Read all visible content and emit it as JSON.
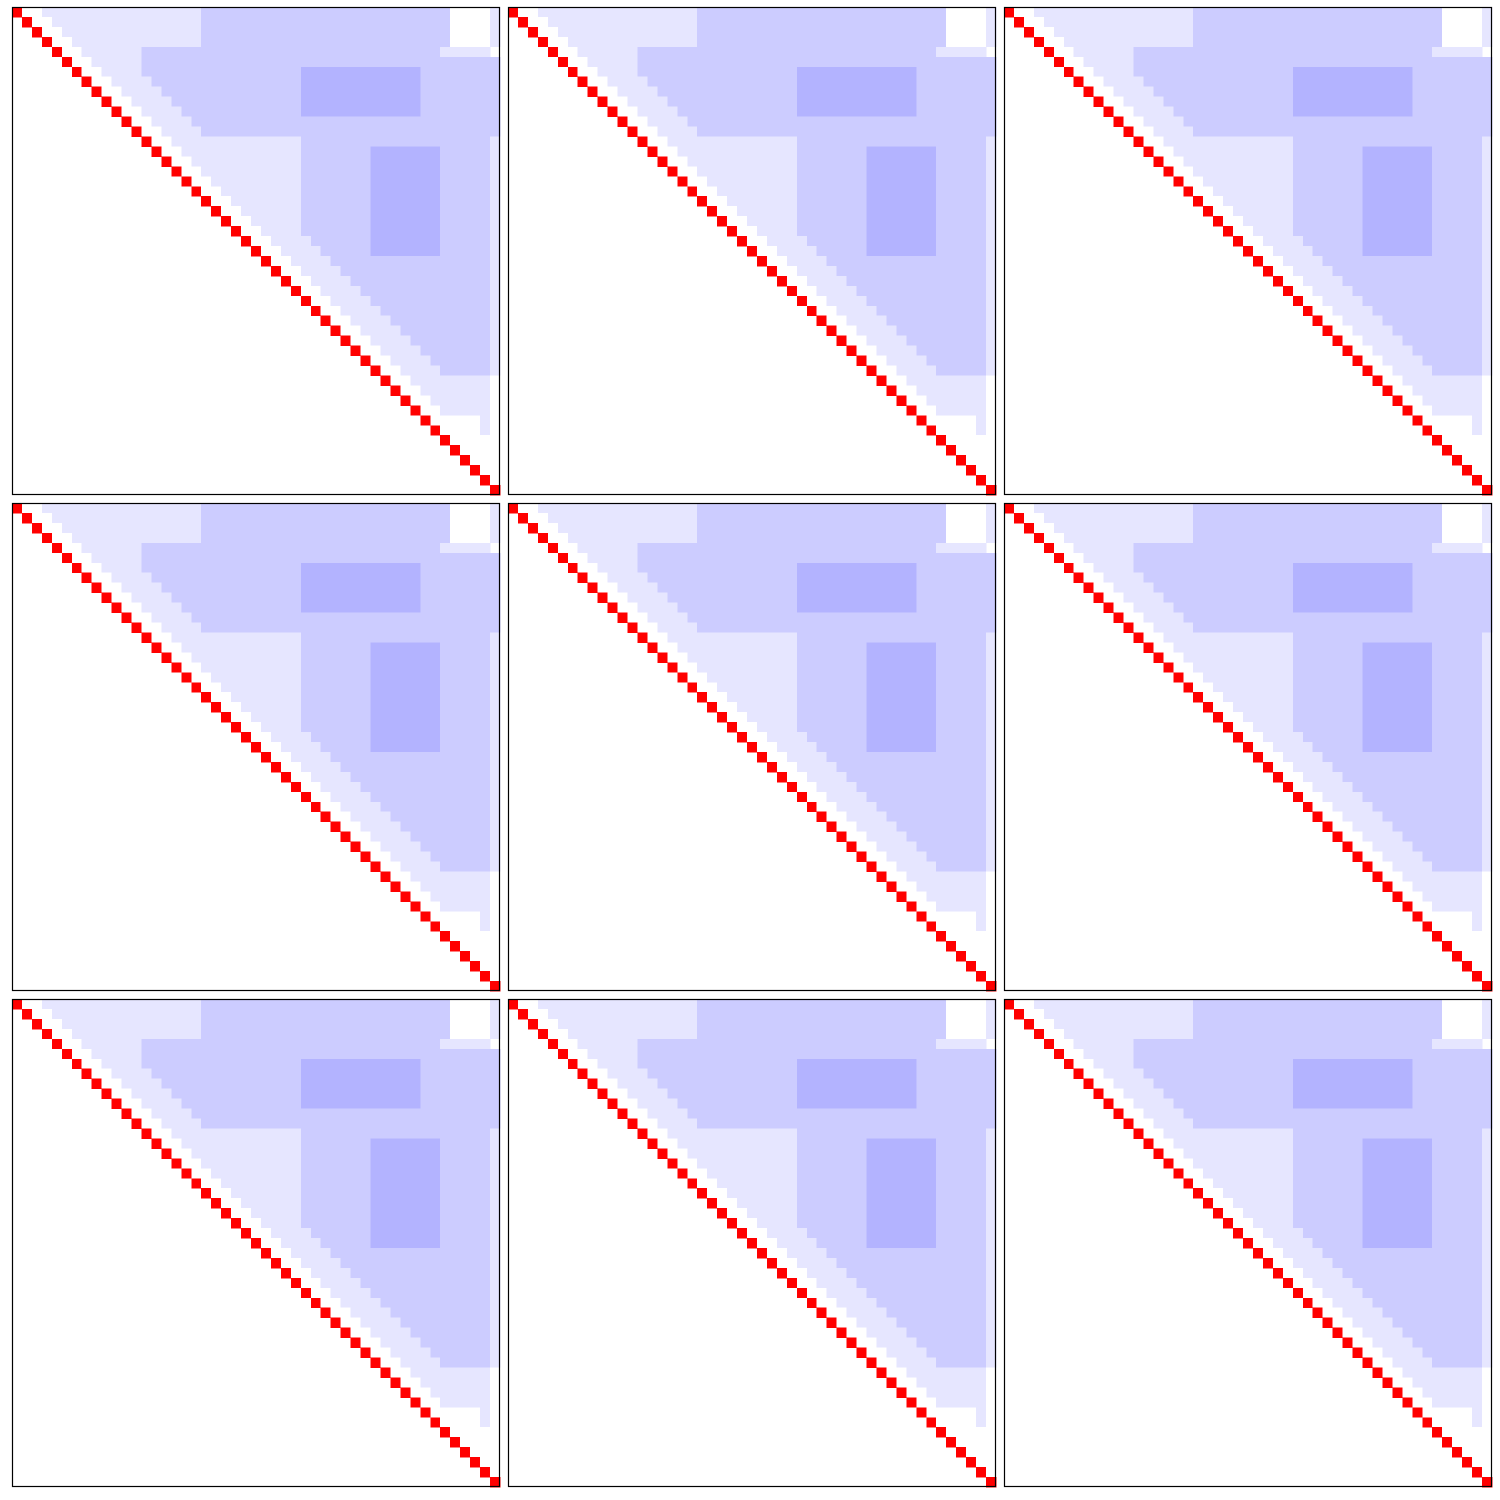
{
  "chart_data": {
    "type": "heatmap",
    "triangle": "upper",
    "vlim": [
      -1,
      1
    ],
    "colormap": [
      "#0000ff",
      "#ffffff",
      "#ff0000"
    ],
    "rows": [
      [
        1,
        0,
        0,
        -0.1,
        -0.1,
        -0.1,
        -0.1,
        -0.1,
        -0.1,
        -0.1,
        -0.1,
        -0.1,
        -0.1,
        -0.1,
        -0.1,
        -0.1,
        -0.1,
        -0.1,
        -0.1,
        -0.2,
        -0.2,
        -0.2,
        -0.2,
        -0.2,
        -0.2,
        -0.2,
        -0.2,
        -0.2,
        -0.2,
        -0.2,
        -0.2,
        -0.2,
        -0.2,
        -0.2,
        -0.2,
        -0.2,
        -0.2,
        -0.2,
        -0.2,
        -0.2,
        -0.2,
        -0.2,
        -0.2,
        -0.2,
        0,
        0,
        0,
        0,
        -0.1
      ],
      [
        1,
        0,
        0,
        -0.1,
        -0.1,
        -0.1,
        -0.1,
        -0.1,
        -0.1,
        -0.1,
        -0.1,
        -0.1,
        -0.1,
        -0.1,
        -0.1,
        -0.1,
        -0.1,
        -0.1,
        -0.2,
        -0.2,
        -0.2,
        -0.2,
        -0.2,
        -0.2,
        -0.2,
        -0.2,
        -0.2,
        -0.2,
        -0.2,
        -0.2,
        -0.2,
        -0.2,
        -0.2,
        -0.2,
        -0.2,
        -0.2,
        -0.2,
        -0.2,
        -0.2,
        -0.2,
        -0.2,
        -0.2,
        -0.2,
        0,
        0,
        0,
        0,
        -0.1
      ],
      [
        1,
        0,
        0,
        -0.1,
        -0.1,
        -0.1,
        -0.1,
        -0.1,
        -0.1,
        -0.1,
        -0.1,
        -0.1,
        -0.1,
        -0.1,
        -0.1,
        -0.1,
        -0.1,
        -0.2,
        -0.2,
        -0.2,
        -0.2,
        -0.2,
        -0.2,
        -0.2,
        -0.2,
        -0.2,
        -0.2,
        -0.2,
        -0.2,
        -0.2,
        -0.2,
        -0.2,
        -0.2,
        -0.2,
        -0.2,
        -0.2,
        -0.2,
        -0.2,
        -0.2,
        -0.2,
        -0.2,
        -0.2,
        0,
        0,
        0,
        0,
        -0.1
      ],
      [
        1,
        0,
        0,
        -0.1,
        -0.1,
        -0.1,
        -0.1,
        -0.1,
        -0.1,
        -0.1,
        -0.1,
        -0.1,
        -0.1,
        -0.1,
        -0.1,
        -0.1,
        -0.2,
        -0.2,
        -0.2,
        -0.2,
        -0.2,
        -0.2,
        -0.2,
        -0.2,
        -0.2,
        -0.2,
        -0.2,
        -0.2,
        -0.2,
        -0.2,
        -0.2,
        -0.2,
        -0.2,
        -0.2,
        -0.2,
        -0.2,
        -0.2,
        -0.2,
        -0.2,
        -0.2,
        -0.2,
        0,
        0,
        0,
        0,
        -0.1
      ],
      [
        1,
        0,
        0,
        -0.1,
        -0.1,
        -0.1,
        -0.1,
        -0.1,
        -0.1,
        -0.2,
        -0.2,
        -0.2,
        -0.2,
        -0.2,
        -0.2,
        -0.2,
        -0.2,
        -0.2,
        -0.2,
        -0.2,
        -0.2,
        -0.2,
        -0.2,
        -0.2,
        -0.2,
        -0.2,
        -0.2,
        -0.2,
        -0.2,
        -0.2,
        -0.2,
        -0.2,
        -0.2,
        -0.2,
        -0.2,
        -0.2,
        -0.2,
        -0.2,
        -0.2,
        -0.1,
        -0.1,
        -0.1,
        -0.1,
        -0.1
      ],
      [
        1,
        0,
        0,
        -0.1,
        -0.1,
        -0.1,
        -0.1,
        -0.1,
        -0.2,
        -0.2,
        -0.2,
        -0.2,
        -0.2,
        -0.2,
        -0.2,
        -0.2,
        -0.2,
        -0.2,
        -0.2,
        -0.2,
        -0.2,
        -0.2,
        -0.2,
        -0.2,
        -0.2,
        -0.2,
        -0.2,
        -0.2,
        -0.2,
        -0.2,
        -0.2,
        -0.2,
        -0.2,
        -0.2,
        -0.2,
        -0.2,
        -0.2,
        -0.2,
        -0.2,
        -0.2,
        -0.2,
        -0.2,
        -0.2,
        -0.2
      ],
      [
        1,
        0,
        0,
        -0.1,
        -0.1,
        -0.1,
        -0.1,
        -0.2,
        -0.2,
        -0.2,
        -0.2,
        -0.2,
        -0.2,
        -0.2,
        -0.2,
        -0.2,
        -0.2,
        -0.2,
        -0.2,
        -0.2,
        -0.2,
        -0.2,
        -0.2,
        -0.3,
        -0.3,
        -0.3,
        -0.3,
        -0.3,
        -0.3,
        -0.3,
        -0.3,
        -0.3,
        -0.3,
        -0.3,
        -0.3,
        -0.2,
        -0.2,
        -0.2,
        -0.2,
        -0.2,
        -0.2,
        -0.2,
        -0.2
      ],
      [
        1,
        0,
        0,
        -0.1,
        -0.1,
        -0.1,
        -0.1,
        -0.2,
        -0.2,
        -0.2,
        -0.2,
        -0.2,
        -0.2,
        -0.2,
        -0.2,
        -0.2,
        -0.2,
        -0.2,
        -0.2,
        -0.2,
        -0.2,
        -0.2,
        -0.3,
        -0.3,
        -0.3,
        -0.3,
        -0.3,
        -0.3,
        -0.3,
        -0.3,
        -0.3,
        -0.3,
        -0.3,
        -0.3,
        -0.2,
        -0.2,
        -0.2,
        -0.2,
        -0.2,
        -0.2,
        -0.2,
        -0.2
      ],
      [
        1,
        0,
        0,
        -0.1,
        -0.1,
        -0.1,
        -0.1,
        -0.2,
        -0.2,
        -0.2,
        -0.2,
        -0.2,
        -0.2,
        -0.2,
        -0.2,
        -0.2,
        -0.2,
        -0.2,
        -0.2,
        -0.2,
        -0.2,
        -0.3,
        -0.3,
        -0.3,
        -0.3,
        -0.3,
        -0.3,
        -0.3,
        -0.3,
        -0.3,
        -0.3,
        -0.3,
        -0.3,
        -0.2,
        -0.2,
        -0.2,
        -0.2,
        -0.2,
        -0.2,
        -0.2,
        -0.2
      ],
      [
        1,
        0,
        0,
        -0.1,
        -0.1,
        -0.1,
        -0.1,
        -0.2,
        -0.2,
        -0.2,
        -0.2,
        -0.2,
        -0.2,
        -0.2,
        -0.2,
        -0.2,
        -0.2,
        -0.2,
        -0.2,
        -0.2,
        -0.3,
        -0.3,
        -0.3,
        -0.3,
        -0.3,
        -0.3,
        -0.3,
        -0.3,
        -0.3,
        -0.3,
        -0.3,
        -0.3,
        -0.2,
        -0.2,
        -0.2,
        -0.2,
        -0.2,
        -0.2,
        -0.2,
        -0.2
      ],
      [
        1,
        0,
        0,
        -0.1,
        -0.1,
        -0.1,
        -0.1,
        -0.2,
        -0.2,
        -0.2,
        -0.2,
        -0.2,
        -0.2,
        -0.2,
        -0.2,
        -0.2,
        -0.2,
        -0.2,
        -0.2,
        -0.3,
        -0.3,
        -0.3,
        -0.3,
        -0.3,
        -0.3,
        -0.3,
        -0.3,
        -0.3,
        -0.3,
        -0.3,
        -0.3,
        -0.2,
        -0.2,
        -0.2,
        -0.2,
        -0.2,
        -0.2,
        -0.2,
        -0.2
      ],
      [
        1,
        0,
        0,
        -0.1,
        -0.1,
        -0.1,
        -0.1,
        -0.2,
        -0.2,
        -0.2,
        -0.2,
        -0.2,
        -0.2,
        -0.2,
        -0.2,
        -0.2,
        -0.2,
        -0.2,
        -0.2,
        -0.2,
        -0.2,
        -0.2,
        -0.2,
        -0.2,
        -0.2,
        -0.2,
        -0.2,
        -0.2,
        -0.2,
        -0.2,
        -0.2,
        -0.2,
        -0.2,
        -0.2,
        -0.2,
        -0.2,
        -0.2,
        -0.2
      ],
      [
        1,
        0,
        0,
        -0.1,
        -0.1,
        -0.1,
        -0.1,
        -0.2,
        -0.2,
        -0.2,
        -0.2,
        -0.2,
        -0.2,
        -0.2,
        -0.2,
        -0.2,
        -0.2,
        -0.2,
        -0.2,
        -0.2,
        -0.2,
        -0.2,
        -0.2,
        -0.2,
        -0.2,
        -0.2,
        -0.2,
        -0.2,
        -0.2,
        -0.2,
        -0.2,
        -0.2,
        -0.2,
        -0.2,
        -0.2,
        -0.2,
        -0.2
      ],
      [
        1,
        0,
        0,
        -0.1,
        -0.1,
        -0.1,
        -0.1,
        -0.1,
        -0.1,
        -0.1,
        -0.1,
        -0.1,
        -0.1,
        -0.1,
        -0.1,
        -0.1,
        -0.2,
        -0.2,
        -0.2,
        -0.2,
        -0.2,
        -0.2,
        -0.2,
        -0.2,
        -0.2,
        -0.2,
        -0.2,
        -0.2,
        -0.2,
        -0.2,
        -0.2,
        -0.2,
        -0.2,
        -0.2,
        -0.2,
        -0.1
      ],
      [
        1,
        0,
        0,
        -0.1,
        -0.1,
        -0.1,
        -0.1,
        -0.1,
        -0.1,
        -0.1,
        -0.1,
        -0.1,
        -0.1,
        -0.1,
        -0.1,
        -0.2,
        -0.2,
        -0.2,
        -0.2,
        -0.2,
        -0.2,
        -0.2,
        -0.3,
        -0.3,
        -0.3,
        -0.3,
        -0.3,
        -0.3,
        -0.3,
        -0.2,
        -0.2,
        -0.2,
        -0.2,
        -0.2,
        -0.1
      ],
      [
        1,
        0,
        0,
        -0.1,
        -0.1,
        -0.1,
        -0.1,
        -0.1,
        -0.1,
        -0.1,
        -0.1,
        -0.1,
        -0.1,
        -0.1,
        -0.2,
        -0.2,
        -0.2,
        -0.2,
        -0.2,
        -0.2,
        -0.2,
        -0.3,
        -0.3,
        -0.3,
        -0.3,
        -0.3,
        -0.3,
        -0.3,
        -0.2,
        -0.2,
        -0.2,
        -0.2,
        -0.2,
        -0.1
      ],
      [
        1,
        0,
        0,
        -0.1,
        -0.1,
        -0.1,
        -0.1,
        -0.1,
        -0.1,
        -0.1,
        -0.1,
        -0.1,
        -0.1,
        -0.2,
        -0.2,
        -0.2,
        -0.2,
        -0.2,
        -0.2,
        -0.2,
        -0.3,
        -0.3,
        -0.3,
        -0.3,
        -0.3,
        -0.3,
        -0.3,
        -0.2,
        -0.2,
        -0.2,
        -0.2,
        -0.2,
        -0.1
      ],
      [
        1,
        0,
        0,
        -0.1,
        -0.1,
        -0.1,
        -0.1,
        -0.1,
        -0.1,
        -0.1,
        -0.1,
        -0.1,
        -0.2,
        -0.2,
        -0.2,
        -0.2,
        -0.2,
        -0.2,
        -0.2,
        -0.3,
        -0.3,
        -0.3,
        -0.3,
        -0.3,
        -0.3,
        -0.3,
        -0.2,
        -0.2,
        -0.2,
        -0.2,
        -0.2,
        -0.1
      ],
      [
        1,
        0,
        0,
        -0.1,
        -0.1,
        -0.1,
        -0.1,
        -0.1,
        -0.1,
        -0.1,
        -0.1,
        -0.2,
        -0.2,
        -0.2,
        -0.2,
        -0.2,
        -0.2,
        -0.2,
        -0.3,
        -0.3,
        -0.3,
        -0.3,
        -0.3,
        -0.3,
        -0.3,
        -0.2,
        -0.2,
        -0.2,
        -0.2,
        -0.2,
        -0.1
      ],
      [
        1,
        0,
        0,
        -0.1,
        -0.1,
        -0.1,
        -0.1,
        -0.1,
        -0.1,
        -0.1,
        -0.2,
        -0.2,
        -0.2,
        -0.2,
        -0.2,
        -0.2,
        -0.2,
        -0.3,
        -0.3,
        -0.3,
        -0.3,
        -0.3,
        -0.3,
        -0.3,
        -0.2,
        -0.2,
        -0.2,
        -0.2,
        -0.2,
        -0.1
      ],
      [
        1,
        0,
        0,
        -0.1,
        -0.1,
        -0.1,
        -0.1,
        -0.1,
        -0.1,
        -0.2,
        -0.2,
        -0.2,
        -0.2,
        -0.2,
        -0.2,
        -0.2,
        -0.3,
        -0.3,
        -0.3,
        -0.3,
        -0.3,
        -0.3,
        -0.3,
        -0.2,
        -0.2,
        -0.2,
        -0.2,
        -0.2,
        -0.1
      ],
      [
        1,
        0,
        0,
        -0.1,
        -0.1,
        -0.1,
        -0.1,
        -0.1,
        -0.2,
        -0.2,
        -0.2,
        -0.2,
        -0.2,
        -0.2,
        -0.2,
        -0.3,
        -0.3,
        -0.3,
        -0.3,
        -0.3,
        -0.3,
        -0.3,
        -0.2,
        -0.2,
        -0.2,
        -0.2,
        -0.2,
        -0.1
      ],
      [
        1,
        0,
        0,
        -0.1,
        -0.1,
        -0.1,
        -0.1,
        -0.2,
        -0.2,
        -0.2,
        -0.2,
        -0.2,
        -0.2,
        -0.2,
        -0.3,
        -0.3,
        -0.3,
        -0.3,
        -0.3,
        -0.3,
        -0.3,
        -0.2,
        -0.2,
        -0.2,
        -0.2,
        -0.2,
        -0.1
      ],
      [
        1,
        0,
        0,
        -0.1,
        -0.1,
        -0.1,
        -0.1,
        -0.2,
        -0.2,
        -0.2,
        -0.2,
        -0.2,
        -0.2,
        -0.3,
        -0.3,
        -0.3,
        -0.3,
        -0.3,
        -0.3,
        -0.3,
        -0.2,
        -0.2,
        -0.2,
        -0.2,
        -0.2,
        -0.1
      ],
      [
        1,
        0,
        0,
        -0.1,
        -0.1,
        -0.1,
        -0.1,
        -0.2,
        -0.2,
        -0.2,
        -0.2,
        -0.2,
        -0.3,
        -0.3,
        -0.3,
        -0.3,
        -0.3,
        -0.3,
        -0.3,
        -0.2,
        -0.2,
        -0.2,
        -0.2,
        -0.2,
        -0.1
      ],
      [
        1,
        0,
        0,
        -0.1,
        -0.1,
        -0.1,
        -0.1,
        -0.2,
        -0.2,
        -0.2,
        -0.2,
        -0.2,
        -0.2,
        -0.2,
        -0.2,
        -0.2,
        -0.2,
        -0.2,
        -0.2,
        -0.2,
        -0.2,
        -0.2,
        -0.2,
        -0.1
      ],
      [
        1,
        0,
        0,
        -0.1,
        -0.1,
        -0.1,
        -0.1,
        -0.2,
        -0.2,
        -0.2,
        -0.2,
        -0.2,
        -0.2,
        -0.2,
        -0.2,
        -0.2,
        -0.2,
        -0.2,
        -0.2,
        -0.2,
        -0.2,
        -0.2,
        -0.1
      ],
      [
        1,
        0,
        0,
        -0.1,
        -0.1,
        -0.1,
        -0.1,
        -0.2,
        -0.2,
        -0.2,
        -0.2,
        -0.2,
        -0.2,
        -0.2,
        -0.2,
        -0.2,
        -0.2,
        -0.2,
        -0.2,
        -0.2,
        -0.2,
        -0.1
      ],
      [
        1,
        0,
        0,
        -0.1,
        -0.1,
        -0.1,
        -0.1,
        -0.2,
        -0.2,
        -0.2,
        -0.2,
        -0.2,
        -0.2,
        -0.2,
        -0.2,
        -0.2,
        -0.2,
        -0.2,
        -0.2,
        -0.2,
        -0.1
      ],
      [
        1,
        0,
        0,
        -0.1,
        -0.1,
        -0.1,
        -0.1,
        -0.2,
        -0.2,
        -0.2,
        -0.2,
        -0.2,
        -0.2,
        -0.2,
        -0.2,
        -0.2,
        -0.2,
        -0.2,
        -0.2,
        -0.1
      ],
      [
        1,
        0,
        0,
        -0.1,
        -0.1,
        -0.1,
        -0.1,
        -0.2,
        -0.2,
        -0.2,
        -0.2,
        -0.2,
        -0.2,
        -0.2,
        -0.2,
        -0.2,
        -0.2,
        -0.2,
        -0.1
      ],
      [
        1,
        0,
        0,
        -0.1,
        -0.1,
        -0.1,
        -0.1,
        -0.2,
        -0.2,
        -0.2,
        -0.2,
        -0.2,
        -0.2,
        -0.2,
        -0.2,
        -0.2,
        -0.2,
        -0.1
      ],
      [
        1,
        0,
        0,
        -0.1,
        -0.1,
        -0.1,
        -0.1,
        -0.2,
        -0.2,
        -0.2,
        -0.2,
        -0.2,
        -0.2,
        -0.2,
        -0.2,
        -0.2,
        -0.1
      ],
      [
        1,
        0,
        0,
        -0.1,
        -0.1,
        -0.1,
        -0.1,
        -0.2,
        -0.2,
        -0.2,
        -0.2,
        -0.2,
        -0.2,
        -0.2,
        -0.2,
        -0.1
      ],
      [
        1,
        0,
        0,
        -0.1,
        -0.1,
        -0.1,
        -0.1,
        -0.2,
        -0.2,
        -0.2,
        -0.2,
        -0.2,
        -0.2,
        -0.2,
        -0.1
      ],
      [
        1,
        0,
        0,
        -0.1,
        -0.1,
        -0.1,
        -0.1,
        -0.2,
        -0.2,
        -0.2,
        -0.2,
        -0.2,
        -0.2,
        -0.1
      ],
      [
        1,
        0,
        0,
        -0.1,
        -0.1,
        -0.1,
        -0.1,
        -0.2,
        -0.2,
        -0.2,
        -0.2,
        -0.2,
        -0.1
      ],
      [
        1,
        0,
        0,
        -0.1,
        -0.1,
        -0.1,
        -0.1,
        -0.1,
        -0.1,
        -0.1,
        -0.1,
        0
      ],
      [
        1,
        0,
        0,
        -0.1,
        -0.1,
        -0.1,
        -0.1,
        -0.1,
        -0.1,
        -0.1,
        0
      ],
      [
        1,
        0,
        0,
        -0.1,
        -0.1,
        -0.1,
        -0.1,
        -0.1,
        -0.1,
        0
      ],
      [
        1,
        0,
        0,
        -0.1,
        -0.1,
        -0.1,
        -0.1,
        -0.1,
        0
      ],
      [
        1,
        0,
        0,
        0,
        0,
        0,
        -0.1,
        0
      ],
      [
        1,
        0,
        0,
        0,
        0,
        -0.1,
        0
      ],
      [
        1,
        0,
        0,
        0,
        0,
        0
      ],
      [
        1,
        0,
        0,
        0,
        0
      ],
      [
        1,
        0,
        0,
        0
      ],
      [
        1,
        0,
        0
      ],
      [
        1,
        0
      ],
      [
        1
      ]
    ]
  }
}
